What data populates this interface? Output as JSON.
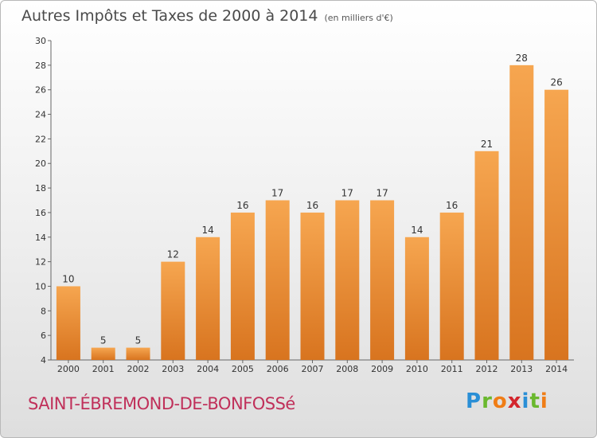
{
  "title": "Autres Impôts et Taxes de 2000 à 2014",
  "subtitle": "(en milliers d'€)",
  "commune": "SAINT-ÉBREMOND-DE-BONFOSSé",
  "logo": {
    "letters": [
      "P",
      "r",
      "o",
      "x",
      "i",
      "t",
      "i"
    ],
    "colors": [
      "#2a8fd6",
      "#6ab82e",
      "#f07d16",
      "#d3262d",
      "#2a8fd6",
      "#6ab82e",
      "#f07d16"
    ]
  },
  "chart_data": {
    "type": "bar",
    "categories": [
      "2000",
      "2001",
      "2002",
      "2003",
      "2004",
      "2005",
      "2006",
      "2007",
      "2008",
      "2009",
      "2010",
      "2011",
      "2012",
      "2013",
      "2014"
    ],
    "values": [
      10,
      5,
      5,
      12,
      14,
      16,
      17,
      16,
      17,
      17,
      14,
      16,
      21,
      28,
      26
    ],
    "ylim": [
      4,
      30
    ],
    "yticks": [
      4,
      6,
      8,
      10,
      12,
      14,
      16,
      18,
      20,
      22,
      24,
      26,
      28,
      30
    ],
    "grid": false,
    "bar_color": "#f0923a"
  }
}
